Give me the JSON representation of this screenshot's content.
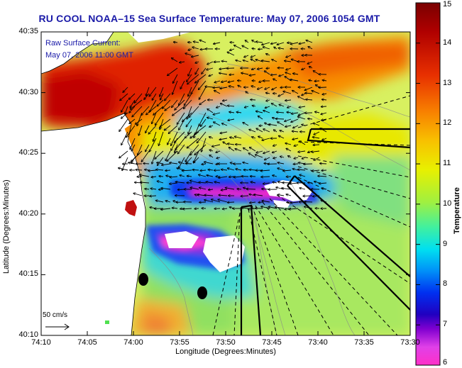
{
  "title": "RU COOL  NOAA–15  Sea Surface Temperature:  May 07, 2006 1054 GMT",
  "legend": {
    "line1": "Raw Surface Current:",
    "line2": "May 07, 2006 11:00 GMT",
    "scale_label": "50 cm/s"
  },
  "axes": {
    "xlabel": "Longitude (Degrees:Minutes)",
    "ylabel": "Latitude (Degrees:Minutes)",
    "xticks": [
      "74:10",
      "74:05",
      "74:00",
      "73:55",
      "73:50",
      "73:45",
      "73:40",
      "73:35",
      "73:30"
    ],
    "yticks": [
      "40:35",
      "40:30",
      "40:25",
      "40:20",
      "40:15",
      "40:10"
    ]
  },
  "colorbar": {
    "label": "Temperature (°C)",
    "ticks": [
      "15",
      "14",
      "13",
      "12",
      "11",
      "10",
      "9",
      "8",
      "7",
      "6"
    ],
    "min": 6,
    "max": 15
  },
  "chart_data": {
    "type": "heatmap",
    "title": "RU COOL  NOAA–15  Sea Surface Temperature:  May 07, 2006 1054 GMT",
    "xlabel": "Longitude (Degrees:Minutes)",
    "ylabel": "Latitude (Degrees:Minutes)",
    "xlim": [
      "74:10",
      "73:30"
    ],
    "ylim": [
      "40:10",
      "40:35"
    ],
    "colorbar_range": [
      6,
      15
    ],
    "colorbar_label": "Temperature (°C)"
  }
}
